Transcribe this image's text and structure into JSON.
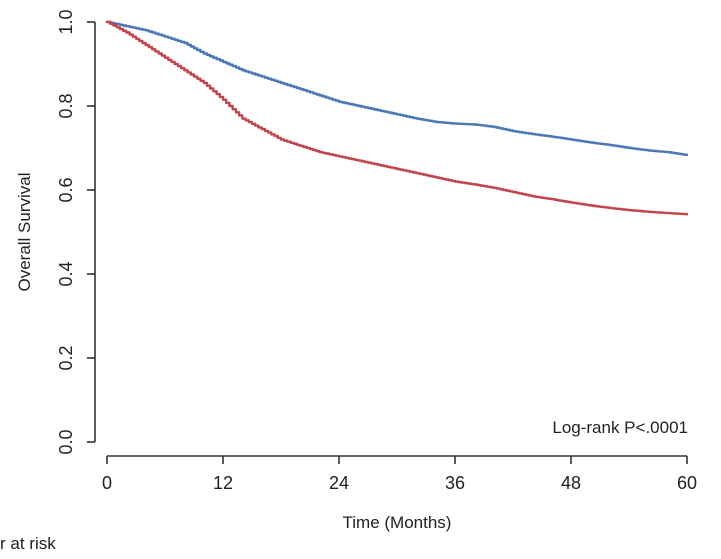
{
  "chart_data": {
    "type": "line",
    "title": "",
    "xlabel": "Time (Months)",
    "ylabel": "Overall Survival",
    "xlim": [
      0,
      60
    ],
    "ylim": [
      0.0,
      1.0
    ],
    "x_ticks": [
      0,
      12,
      24,
      36,
      48,
      60
    ],
    "x_tick_labels": [
      "0",
      "12",
      "24",
      "36",
      "48",
      "60"
    ],
    "y_ticks": [
      0.0,
      0.2,
      0.4,
      0.6,
      0.8,
      1.0
    ],
    "y_tick_labels": [
      "0.0",
      "0.2",
      "0.4",
      "0.6",
      "0.8",
      "1.0"
    ],
    "grid": false,
    "annotation": "Log-rank P<.0001",
    "series": [
      {
        "name": "Blue group",
        "color": "#4a78b5",
        "x": [
          0,
          2,
          4,
          6,
          8,
          10,
          12,
          14,
          16,
          18,
          20,
          22,
          24,
          26,
          28,
          30,
          32,
          34,
          36,
          38,
          40,
          42,
          44,
          46,
          48,
          50,
          52,
          54,
          56,
          58,
          60
        ],
        "y": [
          1.0,
          0.99,
          0.98,
          0.965,
          0.95,
          0.925,
          0.905,
          0.885,
          0.87,
          0.855,
          0.84,
          0.825,
          0.81,
          0.8,
          0.79,
          0.78,
          0.77,
          0.762,
          0.758,
          0.756,
          0.75,
          0.74,
          0.733,
          0.727,
          0.72,
          0.713,
          0.707,
          0.7,
          0.694,
          0.69,
          0.683
        ]
      },
      {
        "name": "Red group",
        "color": "#c0454c",
        "x": [
          0,
          2,
          4,
          6,
          8,
          10,
          12,
          14,
          16,
          18,
          20,
          22,
          24,
          26,
          28,
          30,
          32,
          34,
          36,
          38,
          40,
          42,
          44,
          46,
          48,
          50,
          52,
          54,
          56,
          58,
          60
        ],
        "y": [
          1.0,
          0.975,
          0.945,
          0.915,
          0.885,
          0.855,
          0.815,
          0.77,
          0.745,
          0.72,
          0.705,
          0.69,
          0.68,
          0.67,
          0.66,
          0.65,
          0.64,
          0.63,
          0.62,
          0.613,
          0.605,
          0.595,
          0.585,
          0.578,
          0.57,
          0.563,
          0.557,
          0.552,
          0.548,
          0.545,
          0.542
        ]
      }
    ]
  },
  "risk_table": {
    "label": "r at risk"
  }
}
